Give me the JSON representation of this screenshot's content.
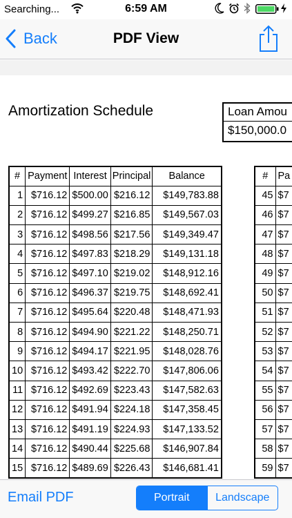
{
  "status_bar": {
    "carrier": "Searching...",
    "time": "6:59 AM"
  },
  "nav": {
    "back_label": "Back",
    "title": "PDF View"
  },
  "document": {
    "title": "Amortization Schedule",
    "loan_amount_label": "Loan Amou",
    "loan_amount_value": "$150,000.0"
  },
  "table": {
    "headers": [
      "#",
      "Payment",
      "Interest",
      "Principal",
      "Balance"
    ],
    "rows": [
      [
        "1",
        "$716.12",
        "$500.00",
        "$216.12",
        "$149,783.88"
      ],
      [
        "2",
        "$716.12",
        "$499.27",
        "$216.85",
        "$149,567.03"
      ],
      [
        "3",
        "$716.12",
        "$498.56",
        "$217.56",
        "$149,349.47"
      ],
      [
        "4",
        "$716.12",
        "$497.83",
        "$218.29",
        "$149,131.18"
      ],
      [
        "5",
        "$716.12",
        "$497.10",
        "$219.02",
        "$148,912.16"
      ],
      [
        "6",
        "$716.12",
        "$496.37",
        "$219.75",
        "$148,692.41"
      ],
      [
        "7",
        "$716.12",
        "$495.64",
        "$220.48",
        "$148,471.93"
      ],
      [
        "8",
        "$716.12",
        "$494.90",
        "$221.22",
        "$148,250.71"
      ],
      [
        "9",
        "$716.12",
        "$494.17",
        "$221.95",
        "$148,028.76"
      ],
      [
        "10",
        "$716.12",
        "$493.42",
        "$222.70",
        "$147,806.06"
      ],
      [
        "11",
        "$716.12",
        "$492.69",
        "$223.43",
        "$147,582.63"
      ],
      [
        "12",
        "$716.12",
        "$491.94",
        "$224.18",
        "$147,358.45"
      ],
      [
        "13",
        "$716.12",
        "$491.19",
        "$224.93",
        "$147,133.52"
      ],
      [
        "14",
        "$716.12",
        "$490.44",
        "$225.68",
        "$146,907.84"
      ],
      [
        "15",
        "$716.12",
        "$489.69",
        "$226.43",
        "$146,681.41"
      ]
    ]
  },
  "table2": {
    "headers": [
      "#",
      "Pa"
    ],
    "rows": [
      [
        "45",
        "$7"
      ],
      [
        "46",
        "$7"
      ],
      [
        "47",
        "$7"
      ],
      [
        "48",
        "$7"
      ],
      [
        "49",
        "$7"
      ],
      [
        "50",
        "$7"
      ],
      [
        "51",
        "$7"
      ],
      [
        "52",
        "$7"
      ],
      [
        "53",
        "$7"
      ],
      [
        "54",
        "$7"
      ],
      [
        "55",
        "$7"
      ],
      [
        "56",
        "$7"
      ],
      [
        "57",
        "$7"
      ],
      [
        "58",
        "$7"
      ],
      [
        "59",
        "$7"
      ]
    ]
  },
  "bottom": {
    "email_label": "Email PDF",
    "portrait_label": "Portrait",
    "landscape_label": "Landscape",
    "selected": "Portrait"
  },
  "colors": {
    "accent": "#147efb",
    "bar_background": "#f8f8f8"
  },
  "icons": {
    "wifi": "wifi-icon",
    "moon": "moon-icon",
    "alarm": "alarm-clock-icon",
    "bluetooth": "bluetooth-icon",
    "battery": "battery-icon",
    "charging": "charging-bolt-icon",
    "back": "chevron-left-icon",
    "share": "share-icon"
  }
}
